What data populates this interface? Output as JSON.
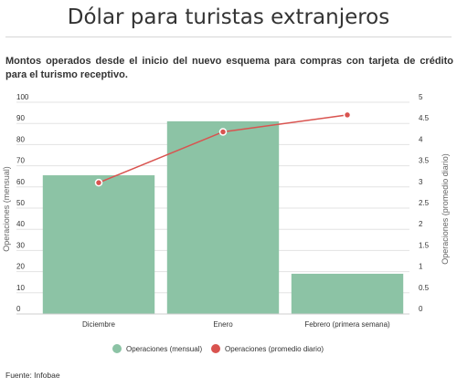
{
  "header": {
    "title": "Dólar para turistas extranjeros",
    "subtitle": "Montos operados desde el inicio del nuevo esquema para compras con tarjeta de crédito para el turismo receptivo."
  },
  "footer": {
    "source": "Fuente: Infobae"
  },
  "colors": {
    "bars": "#8cc3a5",
    "line": "#d9534f",
    "grid": "#e3e3e3"
  },
  "chart_data": {
    "type": "bar",
    "categories": [
      "Diciembre",
      "Enero",
      "Febrero (primera semana)"
    ],
    "series": [
      {
        "name": "Operaciones (mensual)",
        "type": "bar",
        "axis": "left",
        "values": [
          65.5,
          91,
          19
        ]
      },
      {
        "name": "Operaciones (promedio diario)",
        "type": "line",
        "axis": "right",
        "values": [
          3.1,
          4.3,
          4.7
        ]
      }
    ],
    "ylabel": "Operaciones (mensual)",
    "ylabel_right": "Operaciones (promedio diario)",
    "ylim": [
      0,
      100
    ],
    "yticks": [
      0,
      10,
      20,
      30,
      40,
      50,
      60,
      70,
      80,
      90,
      100
    ],
    "ylim_right": [
      0,
      5
    ],
    "yticks_right": [
      "0",
      "0.5",
      "1",
      "1.5",
      "2",
      "2.5",
      "3",
      "3.5",
      "4",
      "4.5",
      "5"
    ],
    "grid": true,
    "legend": "bottom"
  }
}
